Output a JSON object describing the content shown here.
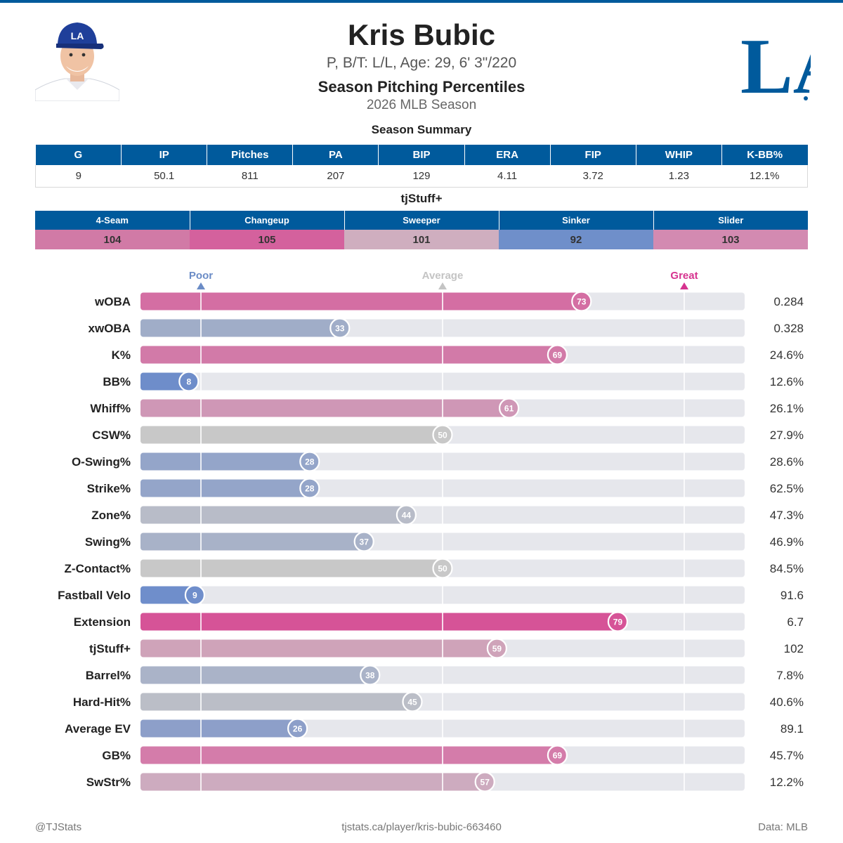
{
  "header": {
    "player_name": "Kris Bubic",
    "bio": "P, B/T: L/L, Age: 29, 6' 3\"/220",
    "title": "Season Pitching Percentiles",
    "subtitle": "2026 MLB Season",
    "team_logo_text": "LA",
    "colors": {
      "primary": "#005a9c",
      "great": "#d6338f",
      "poor": "#6b8cc6",
      "average": "#c4c4c4"
    }
  },
  "summary": {
    "title": "Season Summary",
    "columns": [
      "G",
      "IP",
      "Pitches",
      "PA",
      "BIP",
      "ERA",
      "FIP",
      "WHIP",
      "K-BB%"
    ],
    "values": [
      "9",
      "50.1",
      "811",
      "207",
      "129",
      "4.11",
      "3.72",
      "1.23",
      "12.1%"
    ]
  },
  "stuff": {
    "title": "tjStuff+",
    "pitches": [
      {
        "name": "4-Seam",
        "value": "104",
        "color": "#d17aa6"
      },
      {
        "name": "Changeup",
        "value": "105",
        "color": "#d4619d"
      },
      {
        "name": "Sweeper",
        "value": "101",
        "color": "#cfaebf"
      },
      {
        "name": "Sinker",
        "value": "92",
        "color": "#6f8fca"
      },
      {
        "name": "Slider",
        "value": "103",
        "color": "#d38ab1"
      }
    ]
  },
  "chart_data": {
    "type": "bar",
    "title": "Season Pitching Percentiles",
    "xlim": [
      0,
      100
    ],
    "markers": [
      {
        "label": "Poor",
        "x": 10,
        "color": "#6b8cc6"
      },
      {
        "label": "Average",
        "x": 50,
        "color": "#c4c4c4"
      },
      {
        "label": "Great",
        "x": 90,
        "color": "#d6338f"
      }
    ],
    "reference_lines": [
      10,
      50,
      90
    ],
    "categories": [
      "wOBA",
      "xwOBA",
      "K%",
      "BB%",
      "Whiff%",
      "CSW%",
      "O-Swing%",
      "Strike%",
      "Zone%",
      "Swing%",
      "Z-Contact%",
      "Fastball Velo",
      "Extension",
      "tjStuff+",
      "Barrel%",
      "Hard-Hit%",
      "Average EV",
      "GB%",
      "SwStr%"
    ],
    "percentiles": [
      73,
      33,
      69,
      8,
      61,
      50,
      28,
      28,
      44,
      37,
      50,
      9,
      79,
      59,
      38,
      45,
      26,
      69,
      57
    ],
    "stat_values": [
      "0.284",
      "0.328",
      "24.6%",
      "12.6%",
      "26.1%",
      "27.9%",
      "28.6%",
      "62.5%",
      "47.3%",
      "46.9%",
      "84.5%",
      "91.6",
      "6.7",
      "102",
      "7.8%",
      "40.6%",
      "89.1",
      "45.7%",
      "12.2%"
    ],
    "bar_colors": [
      "#d46ea3",
      "#a0adc8",
      "#d27aa8",
      "#6e8dca",
      "#cf97b6",
      "#c8c8c8",
      "#94a5c9",
      "#94a5c9",
      "#b8bcc8",
      "#a8b2c8",
      "#c8c8c8",
      "#6f8ecb",
      "#d65397",
      "#cfa3b9",
      "#aab3c8",
      "#bbbec7",
      "#8d9fc9",
      "#d47caa",
      "#cdabbf"
    ]
  },
  "footer": {
    "left": "@TJStats",
    "center": "tjstats.ca/player/kris-bubic-663460",
    "right": "Data: MLB"
  }
}
